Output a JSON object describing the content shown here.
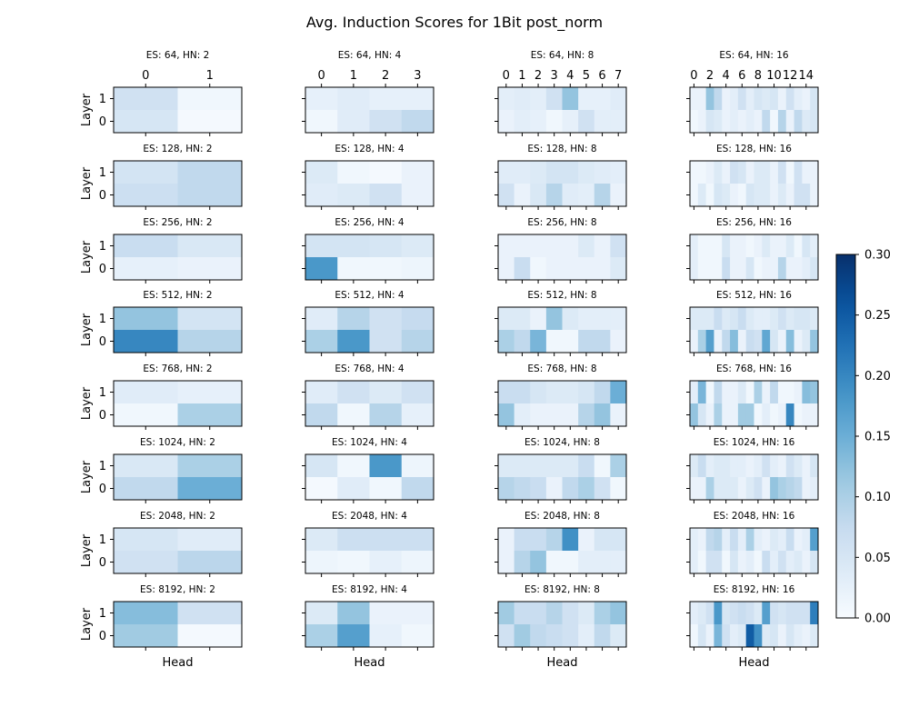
{
  "figure": {
    "title": "Avg. Induction Scores for 1Bit post_norm",
    "xlabel": "Head",
    "ylabel": "Layer"
  },
  "colorbar": {
    "min": 0.0,
    "max": 0.3,
    "ticks": [
      "0.00",
      "0.05",
      "0.10",
      "0.15",
      "0.20",
      "0.25",
      "0.30"
    ],
    "colormap": "Blues",
    "color_low": "#f7fbff",
    "color_high": "#08306b"
  },
  "chart_data": {
    "type": "heatmap",
    "title": "Avg. Induction Scores for 1Bit post_norm",
    "xlabel": "Head",
    "ylabel": "Layer",
    "y_ticks": [
      "0",
      "1"
    ],
    "value_range": [
      0,
      0.3
    ],
    "panels": [
      {
        "title": "ES: 64, HN: 2",
        "x_tick_labels": [
          "0",
          "1"
        ],
        "layer_1": [
          0.06,
          0.01
        ],
        "layer_0": [
          0.05,
          0.005
        ]
      },
      {
        "title": "ES: 64, HN: 4",
        "x_tick_labels": [
          "0",
          "1",
          "2",
          "3"
        ],
        "layer_1": [
          0.025,
          0.035,
          0.025,
          0.025
        ],
        "layer_0": [
          0.01,
          0.035,
          0.06,
          0.08
        ]
      },
      {
        "title": "ES: 64, HN: 8",
        "x_tick_labels": [
          "0",
          "1",
          "2",
          "3",
          "4",
          "5",
          "6",
          "7"
        ],
        "layer_1": [
          0.03,
          0.035,
          0.03,
          0.06,
          0.12,
          0.025,
          0.025,
          0.035
        ],
        "layer_0": [
          0.02,
          0.03,
          0.025,
          0.01,
          0.025,
          0.06,
          0.03,
          0.03
        ]
      },
      {
        "title": "ES: 64, HN: 16",
        "x_tick_labels": [
          "0",
          "2",
          "4",
          "6",
          "8",
          "10",
          "12",
          "14"
        ],
        "layer_1": [
          0.02,
          0.02,
          0.12,
          0.08,
          0.02,
          0.03,
          0.06,
          0.03,
          0.05,
          0.04,
          0.05,
          0.02,
          0.06,
          0.03,
          0.02,
          0.05
        ],
        "layer_0": [
          0.01,
          0.02,
          0.05,
          0.04,
          0.02,
          0.03,
          0.02,
          0.03,
          0.02,
          0.08,
          0.01,
          0.09,
          0.02,
          0.08,
          0.04,
          0.05
        ]
      },
      {
        "title": "ES: 128, HN: 2",
        "x_tick_labels": [],
        "layer_1": [
          0.055,
          0.08
        ],
        "layer_0": [
          0.065,
          0.08
        ]
      },
      {
        "title": "ES: 128, HN: 4",
        "x_tick_labels": [],
        "layer_1": [
          0.04,
          0.01,
          0.005,
          0.02
        ],
        "layer_0": [
          0.035,
          0.04,
          0.06,
          0.02
        ]
      },
      {
        "title": "ES: 128, HN: 8",
        "x_tick_labels": [],
        "layer_1": [
          0.035,
          0.035,
          0.04,
          0.055,
          0.055,
          0.04,
          0.035,
          0.03
        ],
        "layer_0": [
          0.06,
          0.02,
          0.045,
          0.09,
          0.035,
          0.03,
          0.09,
          0.02
        ]
      },
      {
        "title": "ES: 128, HN: 16",
        "x_tick_labels": [],
        "layer_1": [
          0.01,
          0.01,
          0.02,
          0.04,
          0.02,
          0.06,
          0.05,
          0.02,
          0.04,
          0.04,
          0.02,
          0.06,
          0.01,
          0.06,
          0.02,
          0.02
        ],
        "layer_0": [
          0.01,
          0.04,
          0.01,
          0.05,
          0.04,
          0.02,
          0.01,
          0.05,
          0.04,
          0.04,
          0.02,
          0.04,
          0.02,
          0.06,
          0.06,
          0.02
        ]
      },
      {
        "title": "ES: 256, HN: 2",
        "x_tick_labels": [],
        "layer_1": [
          0.07,
          0.045
        ],
        "layer_0": [
          0.025,
          0.02
        ]
      },
      {
        "title": "ES: 256, HN: 4",
        "x_tick_labels": [],
        "layer_1": [
          0.055,
          0.055,
          0.05,
          0.04
        ],
        "layer_0": [
          0.18,
          0.01,
          0.01,
          0.015
        ]
      },
      {
        "title": "ES: 256, HN: 8",
        "x_tick_labels": [],
        "layer_1": [
          0.02,
          0.02,
          0.02,
          0.02,
          0.02,
          0.04,
          0.02,
          0.06
        ],
        "layer_0": [
          0.02,
          0.07,
          0.01,
          0.02,
          0.02,
          0.02,
          0.02,
          0.04
        ]
      },
      {
        "title": "ES: 256, HN: 16",
        "x_tick_labels": [],
        "layer_1": [
          0.03,
          0.01,
          0.01,
          0.01,
          0.05,
          0.02,
          0.02,
          0.01,
          0.02,
          0.04,
          0.02,
          0.02,
          0.04,
          0.01,
          0.05,
          0.03
        ],
        "layer_0": [
          0.03,
          0.01,
          0.01,
          0.01,
          0.07,
          0.02,
          0.02,
          0.05,
          0.01,
          0.02,
          0.02,
          0.09,
          0.02,
          0.02,
          0.03,
          0.05
        ]
      },
      {
        "title": "ES: 512, HN: 2",
        "x_tick_labels": [],
        "layer_1": [
          0.12,
          0.055
        ],
        "layer_0": [
          0.2,
          0.09
        ]
      },
      {
        "title": "ES: 512, HN: 4",
        "x_tick_labels": [],
        "layer_1": [
          0.035,
          0.09,
          0.06,
          0.075
        ],
        "layer_0": [
          0.1,
          0.18,
          0.06,
          0.09
        ]
      },
      {
        "title": "ES: 512, HN: 8",
        "x_tick_labels": [],
        "layer_1": [
          0.04,
          0.04,
          0.02,
          0.12,
          0.04,
          0.03,
          0.03,
          0.03
        ],
        "layer_0": [
          0.1,
          0.08,
          0.14,
          0.01,
          0.01,
          0.08,
          0.08,
          0.02
        ]
      },
      {
        "title": "ES: 512, HN: 16",
        "x_tick_labels": [],
        "layer_1": [
          0.04,
          0.04,
          0.04,
          0.07,
          0.04,
          0.05,
          0.07,
          0.04,
          0.03,
          0.03,
          0.04,
          0.06,
          0.04,
          0.05,
          0.05,
          0.04
        ],
        "layer_0": [
          0.02,
          0.1,
          0.17,
          0.02,
          0.08,
          0.13,
          0.02,
          0.07,
          0.06,
          0.16,
          0.05,
          0.02,
          0.13,
          0.02,
          0.04,
          0.12
        ]
      },
      {
        "title": "ES: 768, HN: 2",
        "x_tick_labels": [],
        "layer_1": [
          0.035,
          0.025
        ],
        "layer_0": [
          0.01,
          0.1
        ]
      },
      {
        "title": "ES: 768, HN: 4",
        "x_tick_labels": [],
        "layer_1": [
          0.035,
          0.06,
          0.04,
          0.06
        ],
        "layer_0": [
          0.08,
          0.01,
          0.09,
          0.025
        ]
      },
      {
        "title": "ES: 768, HN: 8",
        "x_tick_labels": [],
        "layer_1": [
          0.07,
          0.07,
          0.05,
          0.04,
          0.04,
          0.05,
          0.08,
          0.15
        ],
        "layer_0": [
          0.12,
          0.03,
          0.02,
          0.02,
          0.02,
          0.09,
          0.12,
          0.02
        ]
      },
      {
        "title": "ES: 768, HN: 16",
        "x_tick_labels": [],
        "layer_1": [
          0.03,
          0.14,
          0.01,
          0.08,
          0.02,
          0.02,
          0.04,
          0.01,
          0.1,
          0.02,
          0.08,
          0.01,
          0.01,
          0.02,
          0.13,
          0.12
        ],
        "layer_0": [
          0.12,
          0.05,
          0.02,
          0.1,
          0.02,
          0.02,
          0.11,
          0.11,
          0.01,
          0.03,
          0.01,
          0.02,
          0.2,
          0.01,
          0.02,
          0.02
        ]
      },
      {
        "title": "ES: 1024, HN: 2",
        "x_tick_labels": [],
        "layer_1": [
          0.045,
          0.1
        ],
        "layer_0": [
          0.08,
          0.15
        ]
      },
      {
        "title": "ES: 1024, HN: 4",
        "x_tick_labels": [],
        "layer_1": [
          0.05,
          0.01,
          0.18,
          0.015
        ],
        "layer_0": [
          0.005,
          0.035,
          0.01,
          0.08
        ]
      },
      {
        "title": "ES: 1024, HN: 8",
        "x_tick_labels": [],
        "layer_1": [
          0.04,
          0.04,
          0.04,
          0.04,
          0.04,
          0.07,
          0.01,
          0.1
        ],
        "layer_0": [
          0.09,
          0.08,
          0.07,
          0.02,
          0.08,
          0.1,
          0.06,
          0.01
        ]
      },
      {
        "title": "ES: 1024, HN: 16",
        "x_tick_labels": [],
        "layer_1": [
          0.04,
          0.07,
          0.03,
          0.04,
          0.04,
          0.03,
          0.03,
          0.02,
          0.03,
          0.06,
          0.03,
          0.02,
          0.06,
          0.04,
          0.02,
          0.05
        ],
        "layer_0": [
          0.02,
          0.02,
          0.1,
          0.04,
          0.04,
          0.04,
          0.02,
          0.04,
          0.06,
          0.02,
          0.12,
          0.1,
          0.09,
          0.08,
          0.02,
          0.03
        ]
      },
      {
        "title": "ES: 2048, HN: 2",
        "x_tick_labels": [],
        "layer_1": [
          0.05,
          0.035
        ],
        "layer_0": [
          0.06,
          0.085
        ]
      },
      {
        "title": "ES: 2048, HN: 4",
        "x_tick_labels": [],
        "layer_1": [
          0.04,
          0.065,
          0.065,
          0.065
        ],
        "layer_0": [
          0.015,
          0.01,
          0.025,
          0.015
        ]
      },
      {
        "title": "ES: 2048, HN: 8",
        "x_tick_labels": [],
        "layer_1": [
          0.02,
          0.07,
          0.07,
          0.09,
          0.19,
          0.02,
          0.05,
          0.05
        ],
        "layer_0": [
          0.02,
          0.09,
          0.12,
          0.01,
          0.01,
          0.03,
          0.03,
          0.03
        ]
      },
      {
        "title": "ES: 2048, HN: 16",
        "x_tick_labels": [],
        "layer_1": [
          0.03,
          0.02,
          0.08,
          0.09,
          0.03,
          0.07,
          0.03,
          0.1,
          0.03,
          0.02,
          0.04,
          0.03,
          0.07,
          0.02,
          0.03,
          0.17
        ],
        "layer_0": [
          0.03,
          0.01,
          0.06,
          0.06,
          0.01,
          0.05,
          0.02,
          0.03,
          0.01,
          0.07,
          0.03,
          0.06,
          0.03,
          0.04,
          0.02,
          0.05
        ]
      },
      {
        "title": "ES: 8192, HN: 2",
        "x_tick_labels": [],
        "layer_1": [
          0.13,
          0.06
        ],
        "layer_0": [
          0.11,
          0.005
        ]
      },
      {
        "title": "ES: 8192, HN: 4",
        "x_tick_labels": [],
        "layer_1": [
          0.04,
          0.12,
          0.02,
          0.02
        ],
        "layer_0": [
          0.1,
          0.17,
          0.025,
          0.01
        ]
      },
      {
        "title": "ES: 8192, HN: 8",
        "x_tick_labels": [],
        "layer_1": [
          0.11,
          0.07,
          0.07,
          0.09,
          0.06,
          0.04,
          0.1,
          0.12
        ],
        "layer_0": [
          0.06,
          0.11,
          0.08,
          0.07,
          0.06,
          0.03,
          0.08,
          0.04
        ]
      },
      {
        "title": "ES: 8192, HN: 16",
        "x_tick_labels": [],
        "layer_1": [
          0.03,
          0.04,
          0.06,
          0.18,
          0.05,
          0.06,
          0.07,
          0.06,
          0.04,
          0.17,
          0.06,
          0.05,
          0.06,
          0.06,
          0.06,
          0.21
        ],
        "layer_0": [
          0.01,
          0.05,
          0.02,
          0.14,
          0.06,
          0.03,
          0.04,
          0.25,
          0.19,
          0.04,
          0.05,
          0.02,
          0.05,
          0.03,
          0.02,
          0.04
        ]
      }
    ]
  }
}
